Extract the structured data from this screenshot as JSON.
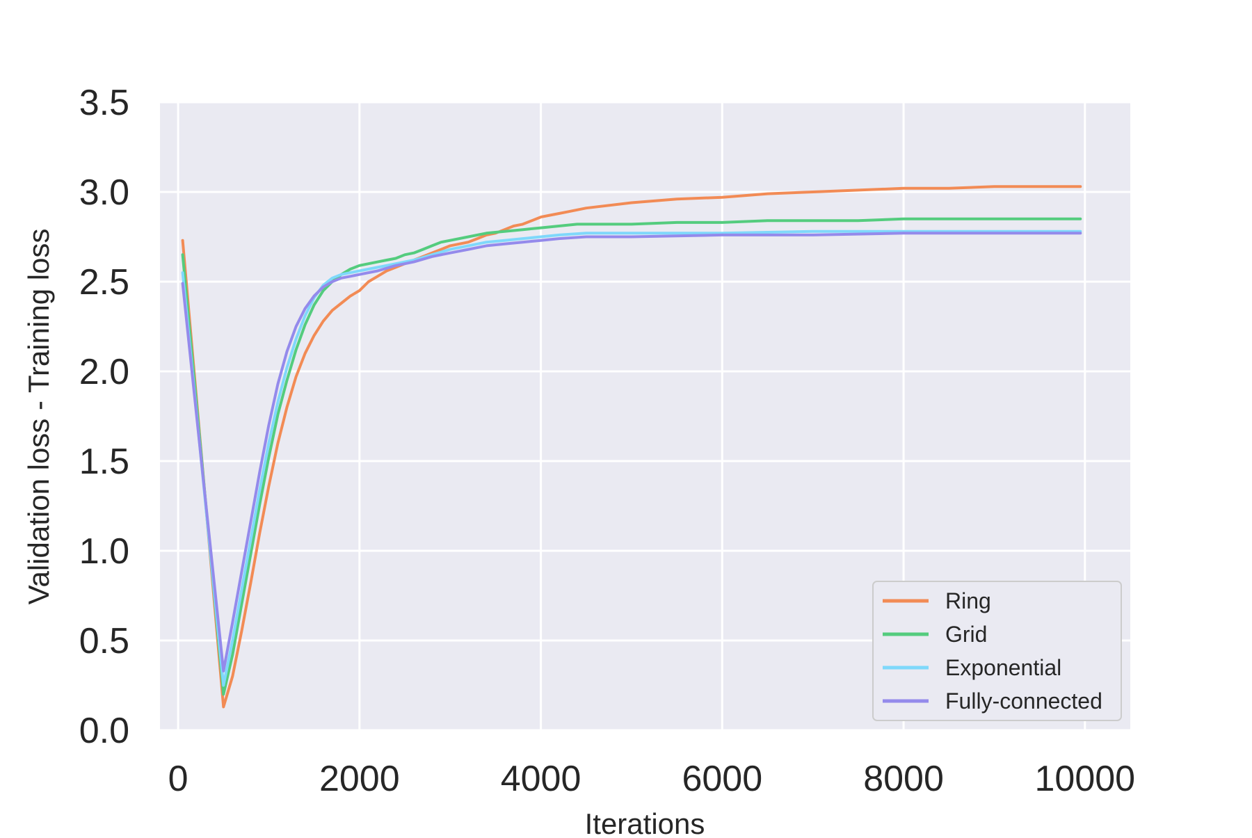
{
  "chart_data": {
    "type": "line",
    "title": "",
    "xlabel": "Iterations",
    "ylabel": "Validation loss - Training loss",
    "xlim": [
      -200,
      10500
    ],
    "ylim": [
      0,
      3.5
    ],
    "x_ticks": [
      0,
      2000,
      4000,
      6000,
      8000,
      10000
    ],
    "x_tick_labels": [
      "0",
      "2000",
      "4000",
      "6000",
      "8000",
      "10000"
    ],
    "y_ticks": [
      0,
      0.5,
      1.0,
      1.5,
      2.0,
      2.5,
      3.0,
      3.5
    ],
    "y_tick_labels": [
      "0.0",
      "0.5",
      "1.0",
      "1.5",
      "2.0",
      "2.5",
      "3.0",
      "3.5"
    ],
    "grid": true,
    "background": "#eaeaf2",
    "legend_position": "lower-right",
    "series": [
      {
        "name": "Ring",
        "color": "#f28b55",
        "x": [
          50,
          500,
          600,
          700,
          800,
          900,
          1000,
          1100,
          1200,
          1300,
          1400,
          1500,
          1600,
          1700,
          1800,
          1900,
          2000,
          2100,
          2200,
          2300,
          2400,
          2500,
          2600,
          2700,
          2800,
          2900,
          3000,
          3100,
          3200,
          3300,
          3400,
          3500,
          3600,
          3700,
          3800,
          3900,
          4000,
          4100,
          4200,
          4300,
          4400,
          4500,
          5000,
          5500,
          6000,
          6500,
          7000,
          7500,
          8000,
          8500,
          9000,
          9500,
          9950
        ],
        "y": [
          2.73,
          0.13,
          0.3,
          0.55,
          0.82,
          1.1,
          1.36,
          1.6,
          1.8,
          1.97,
          2.1,
          2.2,
          2.28,
          2.34,
          2.38,
          2.42,
          2.45,
          2.5,
          2.53,
          2.56,
          2.58,
          2.6,
          2.62,
          2.64,
          2.66,
          2.68,
          2.7,
          2.71,
          2.72,
          2.74,
          2.76,
          2.77,
          2.79,
          2.81,
          2.82,
          2.84,
          2.86,
          2.87,
          2.88,
          2.89,
          2.9,
          2.91,
          2.94,
          2.96,
          2.97,
          2.99,
          3.0,
          3.01,
          3.02,
          3.02,
          3.03,
          3.03,
          3.03
        ]
      },
      {
        "name": "Grid",
        "color": "#54cc7e",
        "x": [
          50,
          500,
          600,
          700,
          800,
          900,
          1000,
          1100,
          1200,
          1300,
          1400,
          1500,
          1600,
          1700,
          1800,
          1900,
          2000,
          2100,
          2200,
          2300,
          2400,
          2500,
          2600,
          2700,
          2800,
          2900,
          3000,
          3200,
          3400,
          3600,
          3800,
          4000,
          4200,
          4400,
          5000,
          5500,
          6000,
          6500,
          7000,
          7500,
          8000,
          8500,
          9000,
          9500,
          9950
        ],
        "y": [
          2.65,
          0.2,
          0.42,
          0.7,
          0.98,
          1.26,
          1.52,
          1.76,
          1.95,
          2.12,
          2.26,
          2.37,
          2.45,
          2.5,
          2.54,
          2.57,
          2.59,
          2.6,
          2.61,
          2.62,
          2.63,
          2.65,
          2.66,
          2.68,
          2.7,
          2.72,
          2.73,
          2.75,
          2.77,
          2.78,
          2.79,
          2.8,
          2.81,
          2.82,
          2.82,
          2.83,
          2.83,
          2.84,
          2.84,
          2.84,
          2.85,
          2.85,
          2.85,
          2.85,
          2.85
        ]
      },
      {
        "name": "Exponential",
        "color": "#7fd8fb",
        "x": [
          50,
          500,
          600,
          700,
          800,
          900,
          1000,
          1100,
          1200,
          1300,
          1400,
          1500,
          1600,
          1700,
          1800,
          1900,
          2000,
          2200,
          2400,
          2600,
          2800,
          3000,
          3200,
          3400,
          3600,
          3800,
          4000,
          4200,
          4500,
          5000,
          6000,
          7000,
          8000,
          9000,
          9950
        ],
        "y": [
          2.55,
          0.25,
          0.5,
          0.78,
          1.06,
          1.34,
          1.6,
          1.83,
          2.02,
          2.18,
          2.31,
          2.41,
          2.48,
          2.52,
          2.54,
          2.55,
          2.56,
          2.58,
          2.6,
          2.62,
          2.65,
          2.68,
          2.7,
          2.72,
          2.73,
          2.74,
          2.75,
          2.76,
          2.77,
          2.77,
          2.77,
          2.78,
          2.78,
          2.78,
          2.78
        ]
      },
      {
        "name": "Fully-connected",
        "color": "#948aeb",
        "x": [
          50,
          500,
          600,
          700,
          800,
          900,
          1000,
          1100,
          1200,
          1300,
          1400,
          1500,
          1600,
          1700,
          1800,
          1900,
          2000,
          2200,
          2400,
          2600,
          2800,
          3000,
          3200,
          3400,
          3600,
          3800,
          4000,
          4200,
          4500,
          5000,
          6000,
          7000,
          8000,
          9000,
          9950
        ],
        "y": [
          2.49,
          0.33,
          0.6,
          0.88,
          1.16,
          1.44,
          1.7,
          1.93,
          2.11,
          2.25,
          2.35,
          2.42,
          2.47,
          2.5,
          2.52,
          2.53,
          2.54,
          2.56,
          2.59,
          2.61,
          2.64,
          2.66,
          2.68,
          2.7,
          2.71,
          2.72,
          2.73,
          2.74,
          2.75,
          2.75,
          2.76,
          2.76,
          2.77,
          2.77,
          2.77
        ]
      }
    ]
  }
}
